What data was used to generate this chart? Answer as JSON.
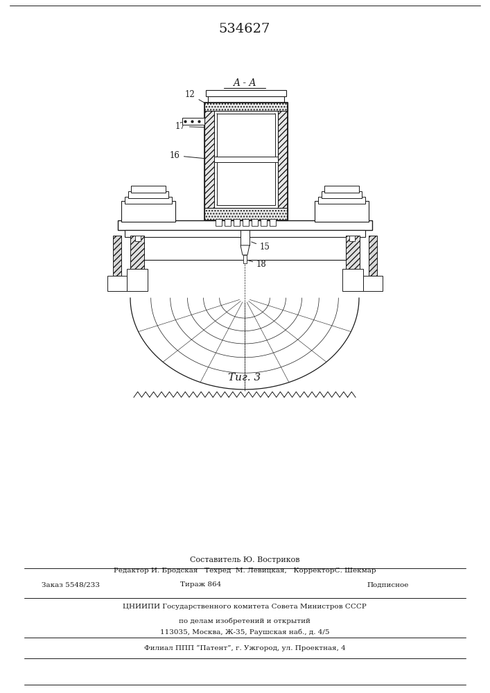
{
  "title": "534627",
  "fig_label": "Τиг. 3",
  "section_label": "A - A",
  "bg_color": "#ffffff",
  "line_color": "#1a1a1a",
  "footer_lines": [
    "Составитель Ю. Востриков",
    "Редактор И. Бродская   Техред  М. Левицкая,   КорректорС. Шекмар",
    "Заказ 5548/233        Тираж 864             Подписное",
    "ЦНИИПИ Государственного комитета Совета Министров СССР",
    "по делам изобретений и открытий",
    "113035, Москва, Ж-35, Раушская наб., д. 4/5",
    "Филиал ППП “Патент”, г. Ужгород, ул. Проектная, 4"
  ]
}
